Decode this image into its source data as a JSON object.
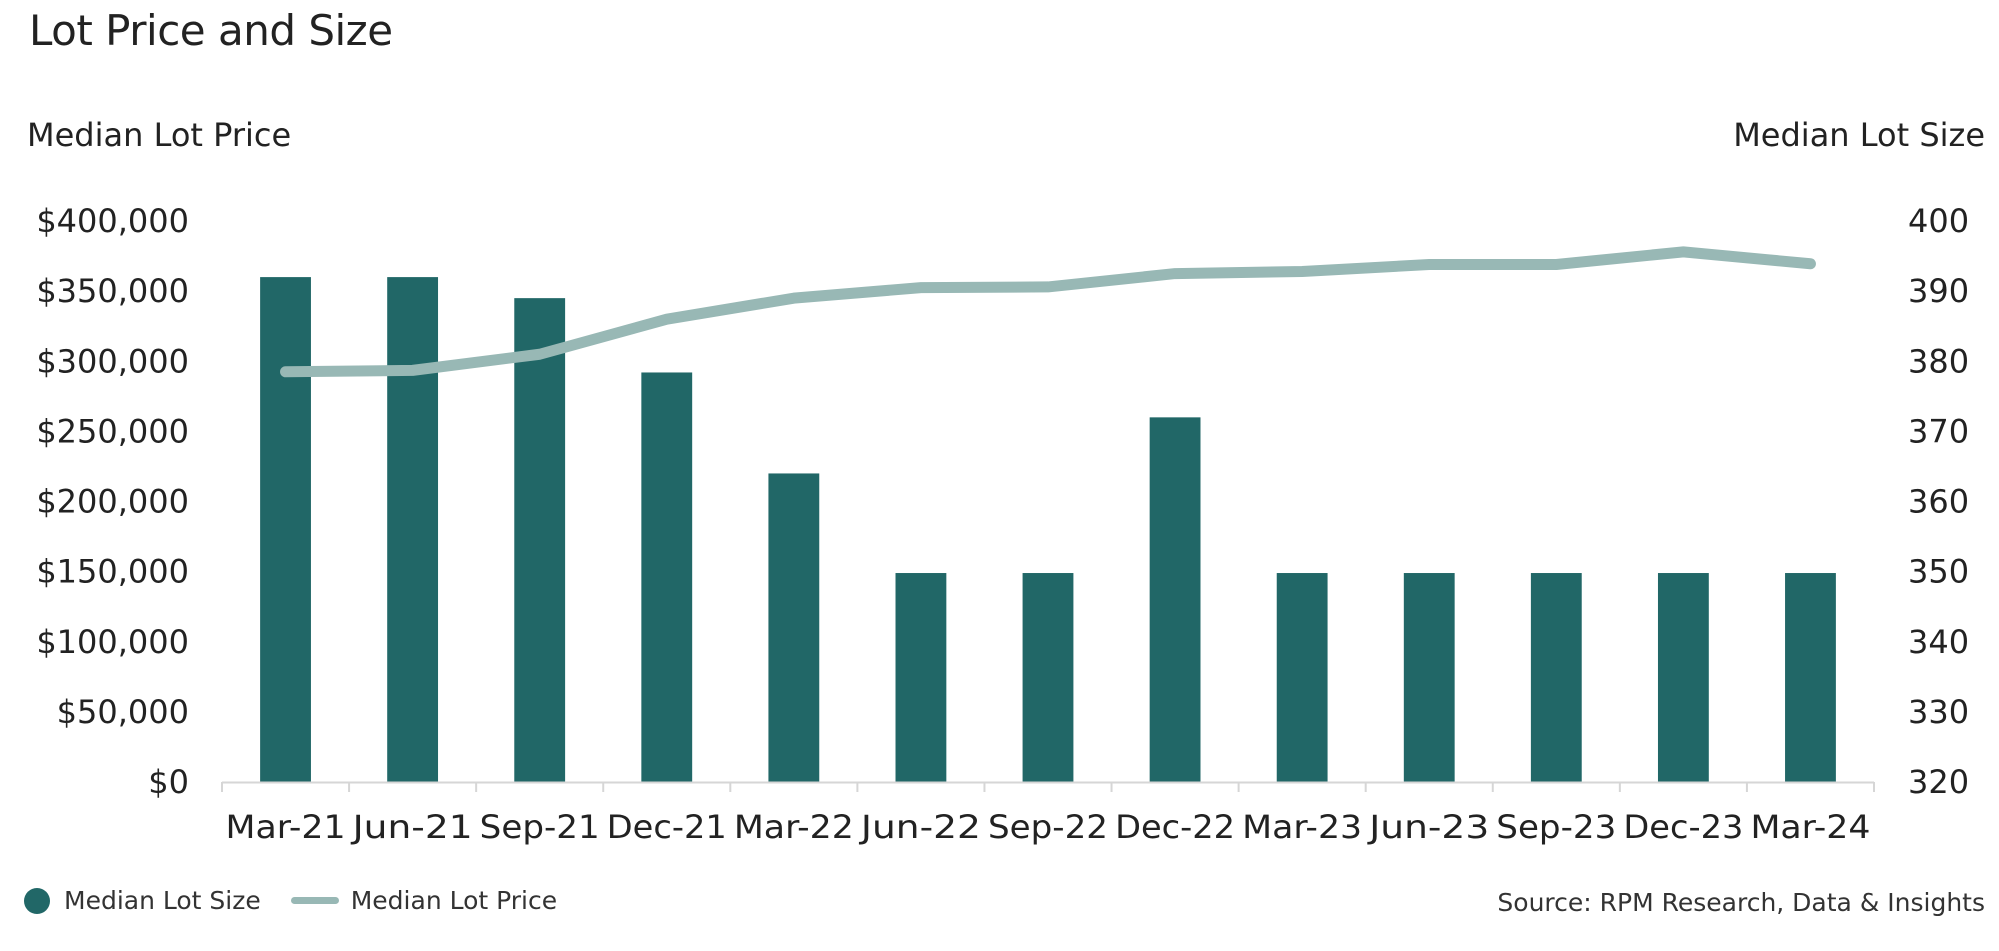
{
  "chart_data": {
    "type": "bar",
    "title": "Lot Price and Size",
    "left_axis_title": "Median Lot Price",
    "right_axis_title": "Median Lot Size",
    "categories": [
      "Mar-21",
      "Jun-21",
      "Sep-21",
      "Dec-21",
      "Mar-22",
      "Jun-22",
      "Sep-22",
      "Dec-22",
      "Mar-23",
      "Jun-23",
      "Sep-23",
      "Dec-23",
      "Mar-24"
    ],
    "series": [
      {
        "name": "Median Lot Size",
        "type": "bar",
        "axis": "left",
        "color": "#216767",
        "values": [
          360000,
          360000,
          345000,
          292000,
          220000,
          149000,
          149000,
          260000,
          149000,
          149000,
          149000,
          149000,
          149000
        ]
      },
      {
        "name": "Median Lot Price",
        "type": "line",
        "axis": "right",
        "color": "#98B8B5",
        "values": [
          378.5,
          378.7,
          381,
          386,
          389,
          390.5,
          390.6,
          392.5,
          392.8,
          393.8,
          393.8,
          395.6,
          393.9
        ]
      }
    ],
    "left_axis": {
      "ylim": [
        0,
        400000
      ],
      "ticks": [
        "$0",
        "$50,000",
        "$100,000",
        "$150,000",
        "$200,000",
        "$250,000",
        "$300,000",
        "$350,000",
        "$400,000"
      ]
    },
    "right_axis": {
      "ylim": [
        320,
        400
      ],
      "ticks": [
        "320",
        "330",
        "340",
        "350",
        "360",
        "370",
        "380",
        "390",
        "400"
      ]
    },
    "grid": false,
    "legend_position": "bottom-left"
  },
  "source_text": "Source: RPM Research, Data & Insights",
  "axis_color": "#d6d6d6"
}
